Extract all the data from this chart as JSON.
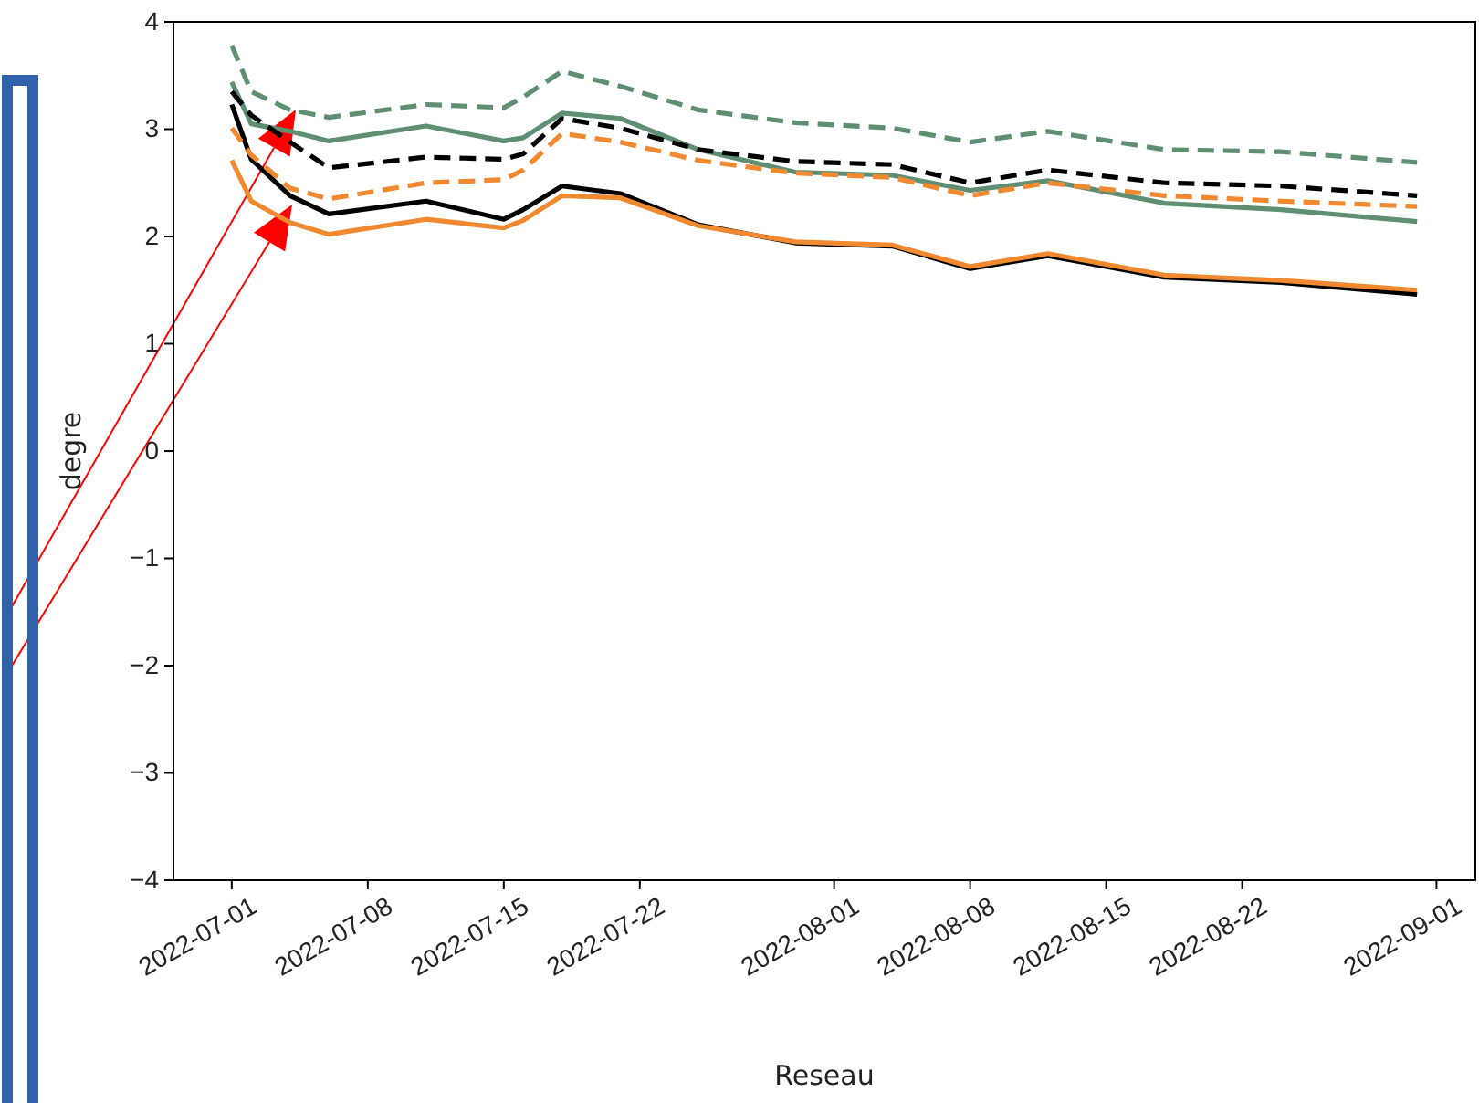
{
  "chart_data": {
    "type": "line",
    "xlabel": "Reseau",
    "ylabel": "degre",
    "x": [
      "2022-07-01",
      "2022-07-02",
      "2022-07-04",
      "2022-07-06",
      "2022-07-11",
      "2022-07-15",
      "2022-07-16",
      "2022-07-18",
      "2022-07-21",
      "2022-07-25",
      "2022-07-30",
      "2022-08-04",
      "2022-08-08",
      "2022-08-12",
      "2022-08-18",
      "2022-08-24",
      "2022-08-31"
    ],
    "series": [
      {
        "color": "#5f8f72",
        "line_style": "dashed",
        "values": [
          3.78,
          3.35,
          3.18,
          3.11,
          3.23,
          3.2,
          3.3,
          3.54,
          3.4,
          3.18,
          3.06,
          3.01,
          2.88,
          2.98,
          2.81,
          2.79,
          2.69
        ]
      },
      {
        "color": "#5f8f72",
        "line_style": "solid",
        "values": [
          3.44,
          3.05,
          2.98,
          2.89,
          3.03,
          2.89,
          2.92,
          3.15,
          3.1,
          2.81,
          2.6,
          2.57,
          2.43,
          2.52,
          2.31,
          2.25,
          2.14
        ]
      },
      {
        "color": "#000000",
        "line_style": "dashed",
        "values": [
          3.35,
          3.13,
          2.88,
          2.64,
          2.74,
          2.72,
          2.77,
          3.1,
          3.01,
          2.81,
          2.7,
          2.67,
          2.5,
          2.62,
          2.5,
          2.47,
          2.38
        ]
      },
      {
        "color": "#000000",
        "line_style": "solid",
        "values": [
          3.23,
          2.72,
          2.38,
          2.21,
          2.33,
          2.16,
          2.25,
          2.47,
          2.4,
          2.11,
          1.94,
          1.91,
          1.7,
          1.82,
          1.62,
          1.57,
          1.46
        ]
      },
      {
        "color": "#f0892f",
        "line_style": "dashed",
        "values": [
          3.01,
          2.76,
          2.45,
          2.35,
          2.5,
          2.53,
          2.62,
          2.96,
          2.88,
          2.71,
          2.59,
          2.55,
          2.38,
          2.5,
          2.38,
          2.33,
          2.28
        ]
      },
      {
        "color": "#f0892f",
        "line_style": "solid",
        "values": [
          2.71,
          2.33,
          2.13,
          2.02,
          2.16,
          2.08,
          2.15,
          2.38,
          2.36,
          2.1,
          1.95,
          1.92,
          1.72,
          1.84,
          1.64,
          1.59,
          1.5
        ]
      }
    ],
    "xlim": [
      "2022-06-28",
      "2022-09-03"
    ],
    "xticks": [
      "2022-07-01",
      "2022-07-08",
      "2022-07-15",
      "2022-07-22",
      "2022-08-01",
      "2022-08-08",
      "2022-08-15",
      "2022-08-22",
      "2022-09-01"
    ],
    "ylim": [
      -4,
      4
    ],
    "yticks": [
      -4,
      -3,
      -2,
      -1,
      0,
      1,
      2,
      3,
      4
    ],
    "grid": false
  }
}
